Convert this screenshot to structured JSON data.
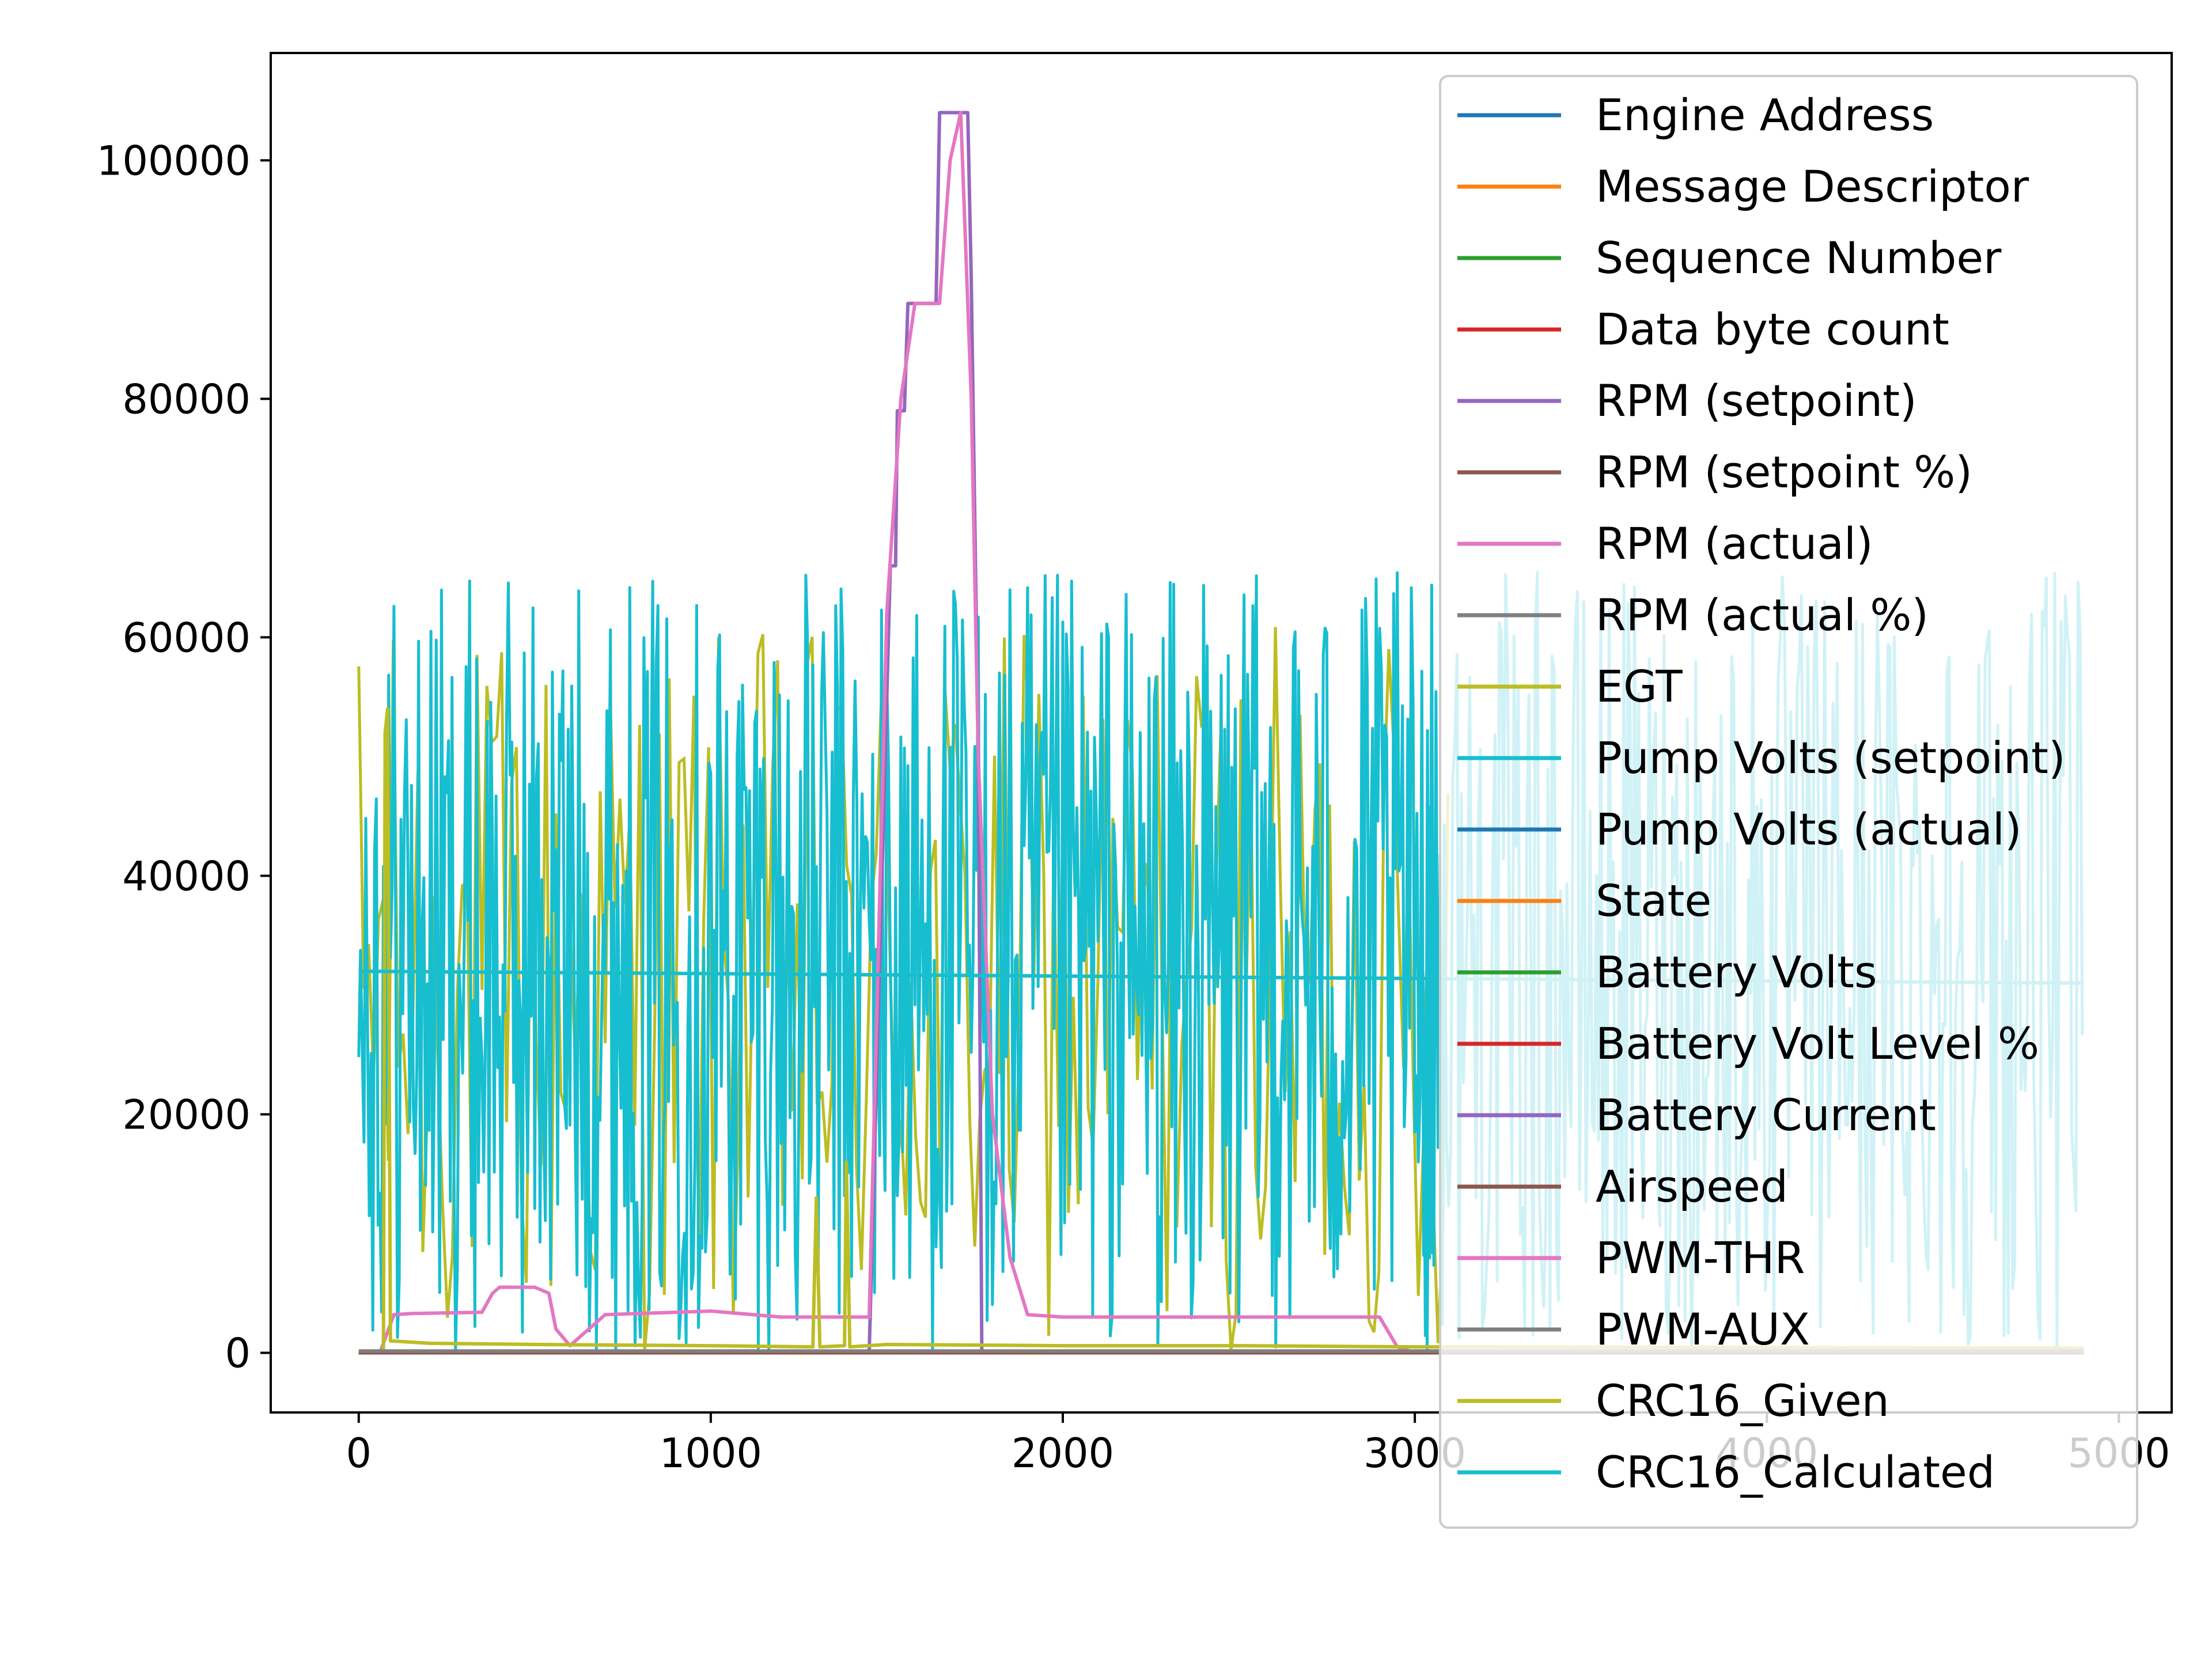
{
  "chart_data": {
    "type": "line",
    "title": "",
    "xlabel": "",
    "ylabel": "",
    "xlim": [
      -250,
      5150
    ],
    "ylim": [
      -5000,
      109000
    ],
    "xticks": [
      0,
      1000,
      2000,
      3000,
      4000,
      5000
    ],
    "xtick_labels": [
      "0",
      "1000",
      "2000",
      "3000",
      "4000",
      "5000"
    ],
    "yticks": [
      0,
      20000,
      40000,
      60000,
      80000,
      100000
    ],
    "ytick_labels": [
      "0",
      "20000",
      "40000",
      "60000",
      "80000",
      "100000"
    ],
    "grid": false,
    "legend_position": "upper right",
    "series": [
      {
        "name": "Engine Address",
        "color": "#1f77b4",
        "x": [
          0,
          4900
        ],
        "y": [
          0,
          0
        ]
      },
      {
        "name": "Message Descriptor",
        "color": "#ff7f0e",
        "x": [
          0,
          4900
        ],
        "y": [
          0,
          0
        ]
      },
      {
        "name": "Sequence Number",
        "color": "#2ca02c",
        "x": [
          0,
          4900
        ],
        "y": [
          100,
          100
        ]
      },
      {
        "name": "Data byte count",
        "color": "#d62728",
        "x": [
          0,
          4900
        ],
        "y": [
          0,
          0
        ]
      },
      {
        "name": "RPM (setpoint)",
        "color": "#9467bd",
        "x": [
          0,
          1450,
          1510,
          1525,
          1530,
          1550,
          1560,
          1575,
          1640,
          1650,
          1660,
          1730,
          1740,
          1760,
          1770,
          4900
        ],
        "y": [
          0,
          0,
          66000,
          66000,
          79000,
          79000,
          88000,
          88000,
          88000,
          104000,
          104000,
          104000,
          90000,
          50000,
          0,
          0
        ]
      },
      {
        "name": "RPM (setpoint %)",
        "color": "#8c564b",
        "x": [
          0,
          4900
        ],
        "y": [
          50,
          50
        ]
      },
      {
        "name": "RPM (actual)",
        "color": "#e377c2",
        "x": [
          0,
          60,
          100,
          150,
          350,
          380,
          400,
          500,
          540,
          560,
          600,
          700,
          1000,
          1200,
          1450,
          1500,
          1540,
          1580,
          1620,
          1650,
          1680,
          1710,
          1740,
          1760,
          1800,
          1850,
          1900,
          2000,
          2300,
          2800,
          2900,
          2950,
          3000,
          4900
        ],
        "y": [
          0,
          0,
          3200,
          3300,
          3400,
          5000,
          5500,
          5500,
          5000,
          2000,
          600,
          3200,
          3500,
          3000,
          3000,
          62000,
          80000,
          88000,
          88000,
          88000,
          100000,
          104000,
          80000,
          50000,
          20000,
          8000,
          3200,
          3000,
          3000,
          3000,
          3000,
          500,
          0,
          0
        ]
      },
      {
        "name": "RPM (actual %)",
        "color": "#7f7f7f",
        "x": [
          0,
          4900
        ],
        "y": [
          20,
          20
        ]
      },
      {
        "name": "EGT",
        "color": "#bcbd22",
        "x": [
          0,
          70,
          75,
          82,
          90,
          200,
          500,
          1000,
          1290,
          1300,
          1310,
          1380,
          1385,
          1395,
          1500,
          2000,
          2500,
          3000,
          4900
        ],
        "y": [
          0,
          0,
          52000,
          54000,
          1000,
          800,
          700,
          600,
          500,
          13000,
          500,
          600,
          16000,
          500,
          700,
          600,
          600,
          500,
          400
        ]
      },
      {
        "name": "Pump Volts (setpoint)",
        "color": "#17becf",
        "x": [
          0,
          4900
        ],
        "y": [
          0,
          0
        ]
      },
      {
        "name": "Pump Volts (actual)",
        "color": "#1f77b4",
        "x": [
          0,
          4900
        ],
        "y": [
          0,
          0
        ]
      },
      {
        "name": "State",
        "color": "#ff7f0e",
        "x": [
          0,
          4900
        ],
        "y": [
          10,
          10
        ]
      },
      {
        "name": "Battery Volts",
        "color": "#2ca02c",
        "x": [
          0,
          4900
        ],
        "y": [
          80,
          80
        ]
      },
      {
        "name": "Battery Volt Level %",
        "color": "#d62728",
        "x": [
          0,
          4900
        ],
        "y": [
          0,
          0
        ]
      },
      {
        "name": "Battery Current",
        "color": "#9467bd",
        "x": [
          0,
          4900
        ],
        "y": [
          0,
          0
        ]
      },
      {
        "name": "Airspeed",
        "color": "#8c564b",
        "x": [
          0,
          4900
        ],
        "y": [
          0,
          0
        ]
      },
      {
        "name": "PWM-THR",
        "color": "#e377c2",
        "x": [
          0,
          4900
        ],
        "y": [
          150,
          150
        ]
      },
      {
        "name": "PWM-AUX",
        "color": "#7f7f7f",
        "x": [
          0,
          4900
        ],
        "y": [
          150,
          150
        ]
      },
      {
        "name": "CRC16_Given",
        "color": "#bcbd22",
        "x": [
          0,
          4900
        ],
        "y": [
          32000,
          31000
        ]
      },
      {
        "name": "CRC16_Calculated",
        "color": "#17becf",
        "x": [
          0,
          4900
        ],
        "y": [
          32000,
          31000
        ]
      }
    ]
  }
}
